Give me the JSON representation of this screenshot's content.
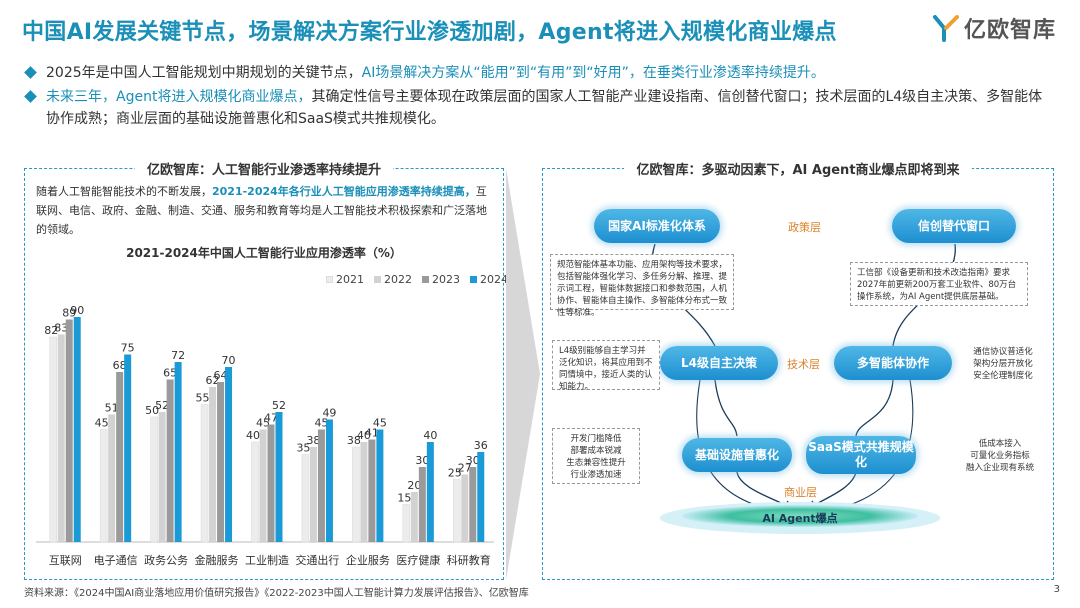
{
  "header": {
    "title": "中国AI发展关键节点，场景解决方案行业渗透加剧，Agent将进入规模化商业爆点",
    "logo_text": "亿欧智库"
  },
  "bullets": [
    {
      "before": "2025年是中国人工智能规划中期规划的关键节点，",
      "highlight": "AI场景解决方案从“能用”到“有用”到“好用”，在垂类行业渗透率持续提升。",
      "after": ""
    },
    {
      "before": "",
      "highlight": "未来三年，Agent将进入规模化商业爆点，",
      "after": "其确定性信号主要体现在政策层面的国家人工智能产业建设指南、信创替代窗口；技术层面的L4级自主决策、多智能体协作成熟；商业层面的基础设施普惠化和SaaS模式共推规模化。"
    }
  ],
  "left_panel": {
    "title": "亿欧智库：人工智能行业渗透率持续提升",
    "desc_before": "随着人工智能智能技术的不断发展，",
    "desc_highlight": "2021-2024年各行业人工智能应用渗透率持续提高，",
    "desc_after": "互联网、电信、政府、金融、制造、交通、服务和教育等均是人工智能技术积极探索和广泛落地的领域。"
  },
  "chart_data": {
    "type": "bar",
    "title": "2021-2024年中国人工智能行业应用渗透率（%）",
    "categories": [
      "互联网",
      "电子通信",
      "政务公务",
      "金融服务",
      "工业制造",
      "交通出行",
      "企业服务",
      "医疗健康",
      "科研教育"
    ],
    "series": [
      {
        "name": "2021",
        "color": "#ececec",
        "values": [
          82,
          45,
          50,
          55,
          40,
          35,
          38,
          15,
          25
        ]
      },
      {
        "name": "2022",
        "color": "#d2d2d2",
        "values": [
          83,
          51,
          52,
          62,
          45,
          38,
          40,
          20,
          27
        ]
      },
      {
        "name": "2023",
        "color": "#9a9a9a",
        "values": [
          89,
          68,
          65,
          64,
          47,
          45,
          41,
          30,
          30
        ]
      },
      {
        "name": "2024",
        "color": "#1a9ad6",
        "values": [
          90,
          75,
          72,
          70,
          52,
          49,
          45,
          40,
          36
        ]
      }
    ],
    "ylim": [
      0,
      100
    ],
    "grid": false,
    "legend": "top-right"
  },
  "right_panel": {
    "title": "亿欧智库：多驱动因素下，AI Agent商业爆点即将到来",
    "pills": {
      "national": "国家AI标准化体系",
      "xinchuang": "信创替代窗口",
      "l4": "L4级自主决策",
      "multi": "多智能体协作",
      "infra": "基础设施普惠化",
      "saas": "SaaS模式共推规模化"
    },
    "layers": {
      "policy": "政策层",
      "tech": "技术层",
      "business": "商业层"
    },
    "notes": {
      "national": "规范智能体基本功能、应用架构等技术要求，包括智能体强化学习、多任务分解、推理、提示词工程，智能体数据接口和参数范围，人机协作、智能体自主操作、多智能体分布式一致性等标准。",
      "xinchuang": "工信部《设备更新和技术改造指南》要求2027年前更新200万套工业软件、80万台操作系统，为AI Agent提供底层基础。",
      "l4": "L4级别能够自主学习并泛化知识，将其应用到不同情境中，接近人类的认知能力。",
      "multi": "通信协议普适化\n架构分层开放化\n安全伦理制度化",
      "infra": "开发门槛降低\n部署成本锐减\n生态兼容性提升\n行业渗透加速",
      "saas": "低成本接入\n可量化业务指标\n融入企业现有系统"
    },
    "base": "AI Agent爆点"
  },
  "footer": {
    "source": "资料来源：《2024中国AI商业落地应用价值研究报告》《2022-2023中国人工智能计算力发展评估报告》、亿欧智库",
    "page": "3"
  },
  "colors": {
    "accent": "#1a8fb8",
    "bar2024": "#1a9ad6",
    "layer": "#d9822b"
  }
}
